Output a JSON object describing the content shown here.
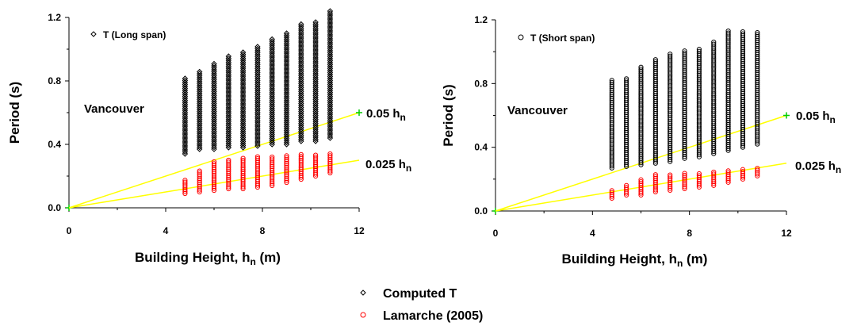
{
  "chart_data": [
    {
      "type": "scatter",
      "xlabel": "Building Height, h",
      "xlabel_sub": "n",
      "xlabel_unit": " (m)",
      "ylabel": "Period (s)",
      "xlim": [
        0,
        12
      ],
      "ylim": [
        0,
        1.2
      ],
      "xticks": [
        "0",
        "4",
        "8",
        "12"
      ],
      "yticks": [
        "0.0",
        "0.4",
        "0.8",
        "1.2"
      ],
      "inset_label": "T (Long span)",
      "inset_marker": "diamond",
      "city_label": "Vancouver",
      "x": [
        4.8,
        5.4,
        6.0,
        6.6,
        7.2,
        7.8,
        8.4,
        9.0,
        9.6,
        10.2,
        10.8
      ],
      "series": [
        {
          "name": "Computed T",
          "marker": "diamond",
          "color": "#000000",
          "ymin": [
            0.34,
            0.37,
            0.37,
            0.38,
            0.38,
            0.39,
            0.4,
            0.4,
            0.42,
            0.42,
            0.44
          ],
          "ymax": [
            0.82,
            0.86,
            0.91,
            0.96,
            0.99,
            1.02,
            1.07,
            1.11,
            1.16,
            1.18,
            1.24
          ]
        },
        {
          "name": "Lamarche (2005)",
          "marker": "circle",
          "color": "#ff0000",
          "ymin": [
            0.09,
            0.1,
            0.11,
            0.12,
            0.12,
            0.13,
            0.14,
            0.16,
            0.18,
            0.2,
            0.22
          ],
          "ymax": [
            0.18,
            0.24,
            0.29,
            0.31,
            0.32,
            0.33,
            0.33,
            0.33,
            0.34,
            0.34,
            0.35
          ]
        }
      ],
      "lines": [
        {
          "label": "0.05 h",
          "label_sub": "n",
          "slope": 0.05,
          "color": "#ffff00"
        },
        {
          "label": "0.025 h",
          "label_sub": "n",
          "slope": 0.025,
          "color": "#ffff00"
        }
      ]
    },
    {
      "type": "scatter",
      "xlabel": "Building Height, h",
      "xlabel_sub": "n",
      "xlabel_unit": " (m)",
      "ylabel": "Period (s)",
      "xlim": [
        0,
        12
      ],
      "ylim": [
        0,
        1.2
      ],
      "xticks": [
        "0",
        "4",
        "8",
        "12"
      ],
      "yticks": [
        "0.0",
        "0.4",
        "0.8",
        "1.2"
      ],
      "inset_label": "T (Short span)",
      "inset_marker": "circle",
      "city_label": "Vancouver",
      "x": [
        4.8,
        5.4,
        6.0,
        6.6,
        7.2,
        7.8,
        8.4,
        9.0,
        9.6,
        10.2,
        10.8
      ],
      "series": [
        {
          "name": "Computed T",
          "marker": "circle",
          "color": "#000000",
          "ymin": [
            0.27,
            0.28,
            0.29,
            0.3,
            0.31,
            0.33,
            0.34,
            0.36,
            0.38,
            0.4,
            0.42
          ],
          "ymax": [
            0.82,
            0.84,
            0.91,
            0.95,
            0.99,
            1.01,
            1.02,
            1.06,
            1.14,
            1.13,
            1.12
          ]
        },
        {
          "name": "Lamarche (2005)",
          "marker": "circle",
          "color": "#ff0000",
          "ymin": [
            0.08,
            0.1,
            0.1,
            0.12,
            0.13,
            0.14,
            0.15,
            0.16,
            0.18,
            0.2,
            0.22
          ],
          "ymax": [
            0.13,
            0.16,
            0.2,
            0.23,
            0.23,
            0.24,
            0.24,
            0.25,
            0.26,
            0.26,
            0.27
          ]
        }
      ],
      "lines": [
        {
          "label": "0.05 h",
          "label_sub": "n",
          "slope": 0.05,
          "color": "#ffff00"
        },
        {
          "label": "0.025 h",
          "label_sub": "n",
          "slope": 0.025,
          "color": "#ffff00"
        }
      ]
    }
  ],
  "legend": {
    "items": [
      {
        "label": "Computed T",
        "marker": "diamond",
        "color": "#000000"
      },
      {
        "label": "Lamarche (2005)",
        "marker": "circle",
        "color": "#ff0000"
      }
    ]
  }
}
